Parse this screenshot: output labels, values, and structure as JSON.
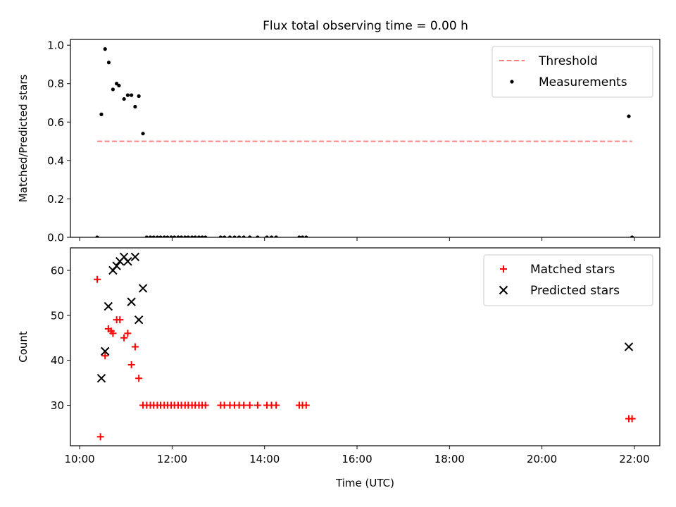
{
  "figure": {
    "title": "Flux total observing time = 0.00 h"
  },
  "chart_data": [
    {
      "type": "scatter",
      "title": "Flux total observing time = 0.00 h",
      "xlabel": "",
      "ylabel": "Matched/Predicted stars",
      "xlim": [
        9.8,
        22.55
      ],
      "ylim": [
        0.0,
        1.03
      ],
      "xticks": [
        10,
        12,
        14,
        16,
        18,
        20,
        22
      ],
      "xtick_labels": [],
      "yticks": [
        0.0,
        0.2,
        0.4,
        0.6,
        0.8,
        1.0
      ],
      "ytick_labels": [
        "0.0",
        "0.2",
        "0.4",
        "0.6",
        "0.8",
        "1.0"
      ],
      "grid": false,
      "legend_position": "upper right",
      "threshold": {
        "name": "Threshold",
        "value": 0.5,
        "x_range": [
          10.38,
          21.95
        ],
        "color": "#ff7f7f",
        "style": "dashed"
      },
      "series": [
        {
          "name": "Measurements",
          "marker": "dot",
          "color": "#000000",
          "x": [
            10.38,
            10.47,
            10.55,
            10.63,
            10.72,
            10.8,
            10.85,
            10.96,
            11.04,
            11.12,
            11.2,
            11.28,
            11.37,
            11.45,
            11.53,
            11.6,
            11.68,
            11.75,
            11.83,
            11.9,
            11.98,
            12.05,
            12.13,
            12.2,
            12.28,
            12.35,
            12.43,
            12.5,
            12.58,
            12.65,
            12.72,
            13.05,
            13.13,
            13.25,
            13.35,
            13.45,
            13.55,
            13.68,
            13.85,
            14.05,
            14.15,
            14.25,
            14.75,
            14.82,
            14.9,
            21.88,
            21.95
          ],
          "y": [
            0.0,
            0.64,
            0.98,
            0.91,
            0.77,
            0.8,
            0.79,
            0.72,
            0.74,
            0.74,
            0.68,
            0.735,
            0.54,
            0.0,
            0.0,
            0.0,
            0.0,
            0.0,
            0.0,
            0.0,
            0.0,
            0.0,
            0.0,
            0.0,
            0.0,
            0.0,
            0.0,
            0.0,
            0.0,
            0.0,
            0.0,
            0.0,
            0.0,
            0.0,
            0.0,
            0.0,
            0.0,
            0.0,
            0.0,
            0.0,
            0.0,
            0.0,
            0.0,
            0.0,
            0.0,
            0.63,
            0.0
          ]
        }
      ]
    },
    {
      "type": "scatter",
      "title": "",
      "xlabel": "Time (UTC)",
      "ylabel": "Count",
      "xlim": [
        9.8,
        22.55
      ],
      "ylim": [
        21.0,
        65.0
      ],
      "xticks": [
        10,
        12,
        14,
        16,
        18,
        20,
        22
      ],
      "xtick_labels": [
        "10:00",
        "12:00",
        "14:00",
        "16:00",
        "18:00",
        "20:00",
        "22:00"
      ],
      "yticks": [
        30,
        40,
        50,
        60
      ],
      "ytick_labels": [
        "30",
        "40",
        "50",
        "60"
      ],
      "grid": false,
      "legend_position": "upper right",
      "series": [
        {
          "name": "Matched stars",
          "marker": "plus",
          "color": "#ff0000",
          "x": [
            10.38,
            10.45,
            10.55,
            10.62,
            10.68,
            10.72,
            10.8,
            10.87,
            10.96,
            11.04,
            11.12,
            11.2,
            11.28,
            11.37,
            11.45,
            11.53,
            11.6,
            11.68,
            11.75,
            11.83,
            11.9,
            11.98,
            12.05,
            12.13,
            12.2,
            12.28,
            12.35,
            12.43,
            12.5,
            12.58,
            12.65,
            12.72,
            13.05,
            13.13,
            13.25,
            13.35,
            13.45,
            13.55,
            13.68,
            13.85,
            14.05,
            14.15,
            14.25,
            14.75,
            14.82,
            14.9,
            21.88,
            21.95
          ],
          "y": [
            58,
            23,
            41,
            47,
            46.5,
            46,
            49,
            49,
            45,
            46,
            39,
            43,
            36,
            30,
            30,
            30,
            30,
            30,
            30,
            30,
            30,
            30,
            30,
            30,
            30,
            30,
            30,
            30,
            30,
            30,
            30,
            30,
            30,
            30,
            30,
            30,
            30,
            30,
            30,
            30,
            30,
            30,
            30,
            30,
            30,
            30,
            27,
            27
          ]
        },
        {
          "name": "Predicted stars",
          "marker": "x",
          "color": "#000000",
          "x": [
            10.47,
            10.55,
            10.62,
            10.72,
            10.8,
            10.87,
            10.96,
            11.04,
            11.12,
            11.2,
            11.28,
            11.37,
            21.88
          ],
          "y": [
            36,
            42,
            52,
            60,
            61,
            62,
            63,
            62,
            53,
            63,
            49,
            56,
            43
          ]
        }
      ]
    }
  ]
}
